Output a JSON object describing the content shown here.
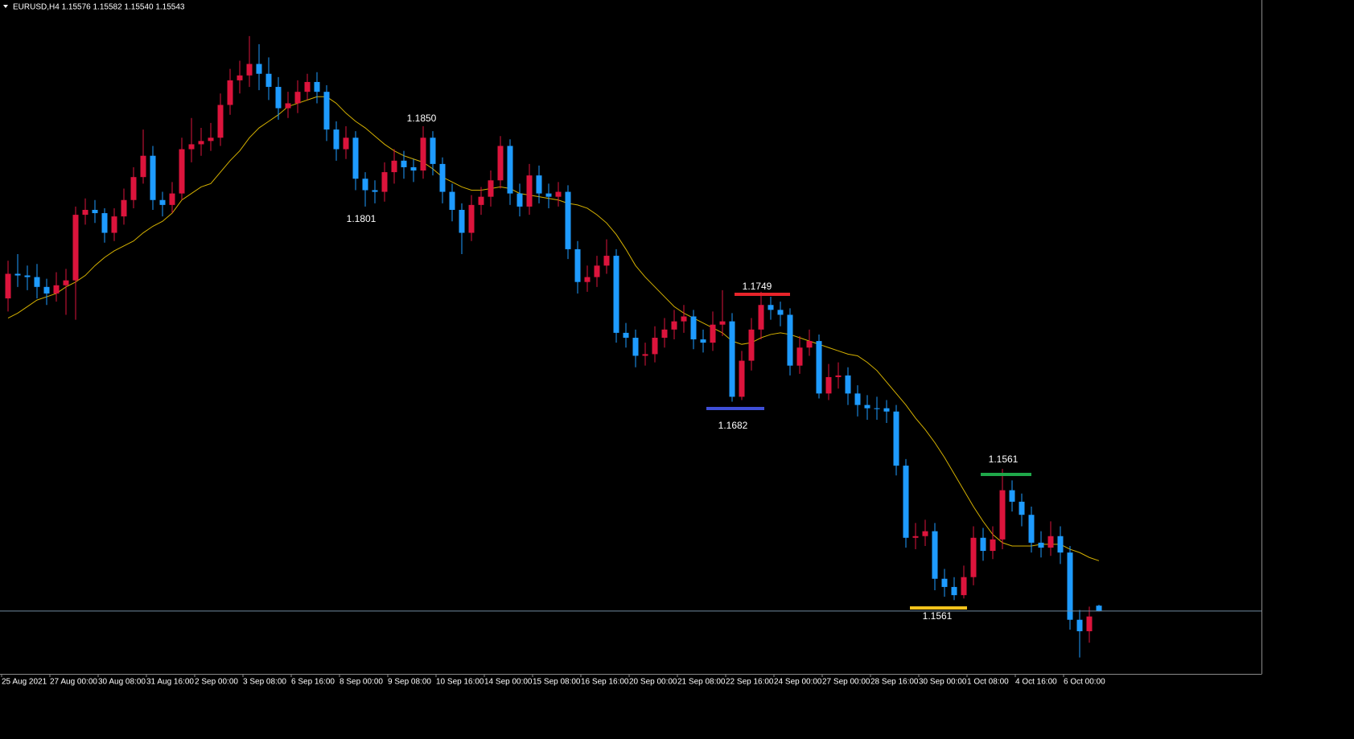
{
  "chart_data": {
    "type": "candlestick",
    "title": "EURUSD,H4  1.15576 1.15582 1.15540 1.15543",
    "up_color": "#dc143c",
    "down_color": "#1e9bff",
    "price_line_color": "#6f8ba0",
    "ylim": [
      1.1516,
      1.1927
    ],
    "categories": [
      "25 Aug 2021",
      null,
      null,
      null,
      null,
      "27 Aug 00:00",
      null,
      null,
      null,
      null,
      "30 Aug 08:00",
      null,
      null,
      null,
      null,
      "31 Aug 16:00",
      null,
      null,
      null,
      null,
      "2 Sep 00:00",
      null,
      null,
      null,
      null,
      "3 Sep 08:00",
      null,
      null,
      null,
      null,
      "6 Sep 16:00",
      null,
      null,
      null,
      null,
      "8 Sep 00:00",
      null,
      null,
      null,
      null,
      "9 Sep 08:00",
      null,
      null,
      null,
      null,
      "10 Sep 16:00",
      null,
      null,
      null,
      null,
      "14 Sep 00:00",
      null,
      null,
      null,
      null,
      "15 Sep 08:00",
      null,
      null,
      null,
      null,
      "16 Sep 16:00",
      null,
      null,
      null,
      null,
      "20 Sep 00:00",
      null,
      null,
      null,
      null,
      "21 Sep 08:00",
      null,
      null,
      null,
      null,
      "22 Sep 16:00",
      null,
      null,
      null,
      null,
      "24 Sep 00:00",
      null,
      null,
      null,
      null,
      "27 Sep 00:00",
      null,
      null,
      null,
      null,
      "28 Sep 16:00",
      null,
      null,
      null,
      null,
      "30 Sep 00:00",
      null,
      null,
      null,
      null,
      "1 Oct 08:00",
      null,
      null,
      null,
      null,
      "4 Oct 16:00",
      null,
      null,
      null,
      null,
      "6 Oct 00:00",
      null,
      null,
      null
    ],
    "open": [
      1.1745,
      1.176,
      1.1759,
      1.1758,
      1.1752,
      1.1748,
      1.1753,
      1.1756,
      1.1796,
      1.1799,
      1.1797,
      1.1785,
      1.1795,
      1.1805,
      1.1819,
      1.1832,
      1.1805,
      1.1802,
      1.1809,
      1.1836,
      1.1839,
      1.1841,
      1.1843,
      1.1863,
      1.1878,
      1.1881,
      1.1888,
      1.1882,
      1.1874,
      1.1861,
      1.1864,
      1.1871,
      1.1877,
      1.1871,
      1.1848,
      1.1836,
      1.1843,
      1.1818,
      1.1811,
      1.181,
      1.1822,
      1.1829,
      1.1825,
      1.1823,
      1.1843,
      1.1827,
      1.181,
      1.1799,
      1.1785,
      1.1802,
      1.1807,
      1.1817,
      1.1838,
      1.1809,
      1.1801,
      1.182,
      1.1809,
      1.1807,
      1.181,
      1.1775,
      1.1755,
      1.1758,
      1.1765,
      1.1771,
      1.1724,
      1.1721,
      1.171,
      1.1711,
      1.1721,
      1.1726,
      1.1731,
      1.1734,
      1.172,
      1.1718,
      1.1729,
      1.1731,
      1.1685,
      1.1707,
      1.1726,
      1.1741,
      1.1738,
      1.1735,
      1.1704,
      1.1715,
      1.1719,
      1.1687,
      1.1697,
      1.1698,
      1.1687,
      1.168,
      1.1678,
      1.1678,
      1.1676,
      1.1643,
      1.1599,
      1.16,
      1.1603,
      1.1574,
      1.1569,
      1.1564,
      1.1575,
      1.1599,
      1.1591,
      1.1598,
      1.1628,
      1.1621,
      1.1613,
      1.1596,
      1.1593,
      1.16,
      1.159,
      1.1549,
      1.1542,
      1.15576
    ],
    "high": [
      1.1768,
      1.1772,
      1.1765,
      1.1766,
      1.1757,
      1.1761,
      1.1763,
      1.1801,
      1.1806,
      1.1805,
      1.18,
      1.18,
      1.1812,
      1.1825,
      1.1848,
      1.1838,
      1.181,
      1.1816,
      1.1843,
      1.1855,
      1.1849,
      1.1852,
      1.187,
      1.1885,
      1.189,
      1.1905,
      1.19,
      1.1892,
      1.188,
      1.1871,
      1.1878,
      1.1882,
      1.1883,
      1.1875,
      1.1853,
      1.185,
      1.1847,
      1.1822,
      1.1817,
      1.1828,
      1.1836,
      1.1835,
      1.183,
      1.185,
      1.1847,
      1.1831,
      1.1815,
      1.1803,
      1.1808,
      1.1813,
      1.1823,
      1.1844,
      1.1842,
      1.1815,
      1.1827,
      1.1826,
      1.1815,
      1.1816,
      1.1814,
      1.178,
      1.1765,
      1.1771,
      1.1781,
      1.1775,
      1.173,
      1.1726,
      1.1718,
      1.1728,
      1.1733,
      1.1738,
      1.1741,
      1.1738,
      1.1726,
      1.1737,
      1.175,
      1.1736,
      1.1713,
      1.1733,
      1.1749,
      1.1746,
      1.1743,
      1.1739,
      1.1722,
      1.1726,
      1.1723,
      1.1705,
      1.1706,
      1.1703,
      1.1692,
      1.1686,
      1.1685,
      1.1683,
      1.168,
      1.1647,
      1.1608,
      1.161,
      1.1608,
      1.158,
      1.1575,
      1.1582,
      1.1606,
      1.1605,
      1.1606,
      1.1641,
      1.1634,
      1.1626,
      1.1618,
      1.1603,
      1.1609,
      1.1606,
      1.1594,
      1.1555,
      1.1557,
      1.15582
    ],
    "low": [
      1.1737,
      1.1752,
      1.175,
      1.1745,
      1.1741,
      1.1743,
      1.1735,
      1.1732,
      1.179,
      1.1791,
      1.1779,
      1.178,
      1.179,
      1.18,
      1.1815,
      1.1799,
      1.1795,
      1.1797,
      1.1805,
      1.1828,
      1.1832,
      1.1835,
      1.1838,
      1.1857,
      1.187,
      1.1874,
      1.1872,
      1.1866,
      1.1854,
      1.1855,
      1.1858,
      1.1866,
      1.1864,
      1.1841,
      1.1829,
      1.183,
      1.1811,
      1.1801,
      1.1803,
      1.1804,
      1.1815,
      1.1818,
      1.1816,
      1.1818,
      1.182,
      1.1803,
      1.1792,
      1.1772,
      1.178,
      1.1796,
      1.1801,
      1.1812,
      1.1802,
      1.1795,
      1.1796,
      1.1803,
      1.18,
      1.1801,
      1.1769,
      1.1748,
      1.1749,
      1.1752,
      1.176,
      1.1718,
      1.1715,
      1.1703,
      1.1704,
      1.1706,
      1.1715,
      1.172,
      1.1724,
      1.1714,
      1.1712,
      1.1713,
      1.1722,
      1.1682,
      1.1683,
      1.1701,
      1.172,
      1.1732,
      1.1728,
      1.1698,
      1.1699,
      1.171,
      1.1684,
      1.1683,
      1.169,
      1.168,
      1.1673,
      1.1671,
      1.1671,
      1.1669,
      1.1637,
      1.1593,
      1.1592,
      1.1594,
      1.1567,
      1.1563,
      1.1561,
      1.1562,
      1.157,
      1.1585,
      1.1586,
      1.1592,
      1.1615,
      1.1606,
      1.159,
      1.1587,
      1.1588,
      1.1583,
      1.1543,
      1.1526,
      1.1535,
      1.1554
    ],
    "close": [
      1.176,
      1.1759,
      1.1758,
      1.1752,
      1.1748,
      1.1753,
      1.1756,
      1.1796,
      1.1799,
      1.1797,
      1.1785,
      1.1795,
      1.1805,
      1.1819,
      1.1832,
      1.1805,
      1.1802,
      1.1809,
      1.1836,
      1.1839,
      1.1841,
      1.1843,
      1.1863,
      1.1878,
      1.1881,
      1.1888,
      1.1882,
      1.1874,
      1.1861,
      1.1864,
      1.1871,
      1.1877,
      1.1871,
      1.1848,
      1.1836,
      1.1843,
      1.1818,
      1.1811,
      1.181,
      1.1822,
      1.1829,
      1.1825,
      1.1823,
      1.1843,
      1.1827,
      1.181,
      1.1799,
      1.1785,
      1.1802,
      1.1807,
      1.1817,
      1.1838,
      1.1809,
      1.1801,
      1.182,
      1.1809,
      1.1807,
      1.181,
      1.1775,
      1.1755,
      1.1758,
      1.1765,
      1.1771,
      1.1724,
      1.1721,
      1.171,
      1.1711,
      1.1721,
      1.1726,
      1.1731,
      1.1734,
      1.172,
      1.1718,
      1.1729,
      1.1731,
      1.1685,
      1.1707,
      1.1726,
      1.1741,
      1.1738,
      1.1735,
      1.1704,
      1.1715,
      1.1719,
      1.1687,
      1.1697,
      1.1698,
      1.1687,
      1.168,
      1.1678,
      1.1678,
      1.1676,
      1.1643,
      1.1599,
      1.16,
      1.1603,
      1.1574,
      1.1569,
      1.1564,
      1.1575,
      1.1599,
      1.1591,
      1.1598,
      1.1628,
      1.1621,
      1.1613,
      1.1596,
      1.1593,
      1.16,
      1.159,
      1.1549,
      1.1542,
      1.1551,
      1.15543
    ],
    "ma": {
      "color": "#d4b000",
      "values": [
        1.1733,
        1.1736,
        1.174,
        1.1744,
        1.1746,
        1.1748,
        1.1752,
        1.1755,
        1.1759,
        1.1765,
        1.177,
        1.1774,
        1.1777,
        1.178,
        1.1785,
        1.1789,
        1.1792,
        1.1797,
        1.1805,
        1.1809,
        1.1813,
        1.1815,
        1.1822,
        1.1829,
        1.1835,
        1.1843,
        1.1849,
        1.1853,
        1.1857,
        1.1862,
        1.1864,
        1.1866,
        1.1868,
        1.1868,
        1.1864,
        1.1858,
        1.1853,
        1.1849,
        1.1844,
        1.1839,
        1.1835,
        1.1832,
        1.183,
        1.1828,
        1.1824,
        1.1819,
        1.1816,
        1.1813,
        1.1811,
        1.1811,
        1.1812,
        1.1813,
        1.1812,
        1.1809,
        1.1808,
        1.1807,
        1.1806,
        1.1805,
        1.1803,
        1.1802,
        1.18,
        1.1796,
        1.1791,
        1.1784,
        1.1775,
        1.1765,
        1.1758,
        1.1752,
        1.1746,
        1.174,
        1.1736,
        1.1733,
        1.173,
        1.1727,
        1.1724,
        1.1719,
        1.1717,
        1.1718,
        1.1721,
        1.1723,
        1.1724,
        1.1723,
        1.1721,
        1.1719,
        1.1717,
        1.1715,
        1.1713,
        1.1711,
        1.171,
        1.1706,
        1.1701,
        1.1694,
        1.1687,
        1.168,
        1.1672,
        1.1665,
        1.1657,
        1.1648,
        1.1638,
        1.1628,
        1.1618,
        1.1609,
        1.1601,
        1.1596,
        1.1594,
        1.1594,
        1.1594,
        1.1595,
        1.1595,
        1.1595,
        1.1592,
        1.159,
        1.1587,
        1.1585
      ]
    },
    "annotations": [
      "1.1850",
      "1.1801",
      "1.1749",
      "1.1682",
      "1.1561",
      "1.1561"
    ]
  }
}
